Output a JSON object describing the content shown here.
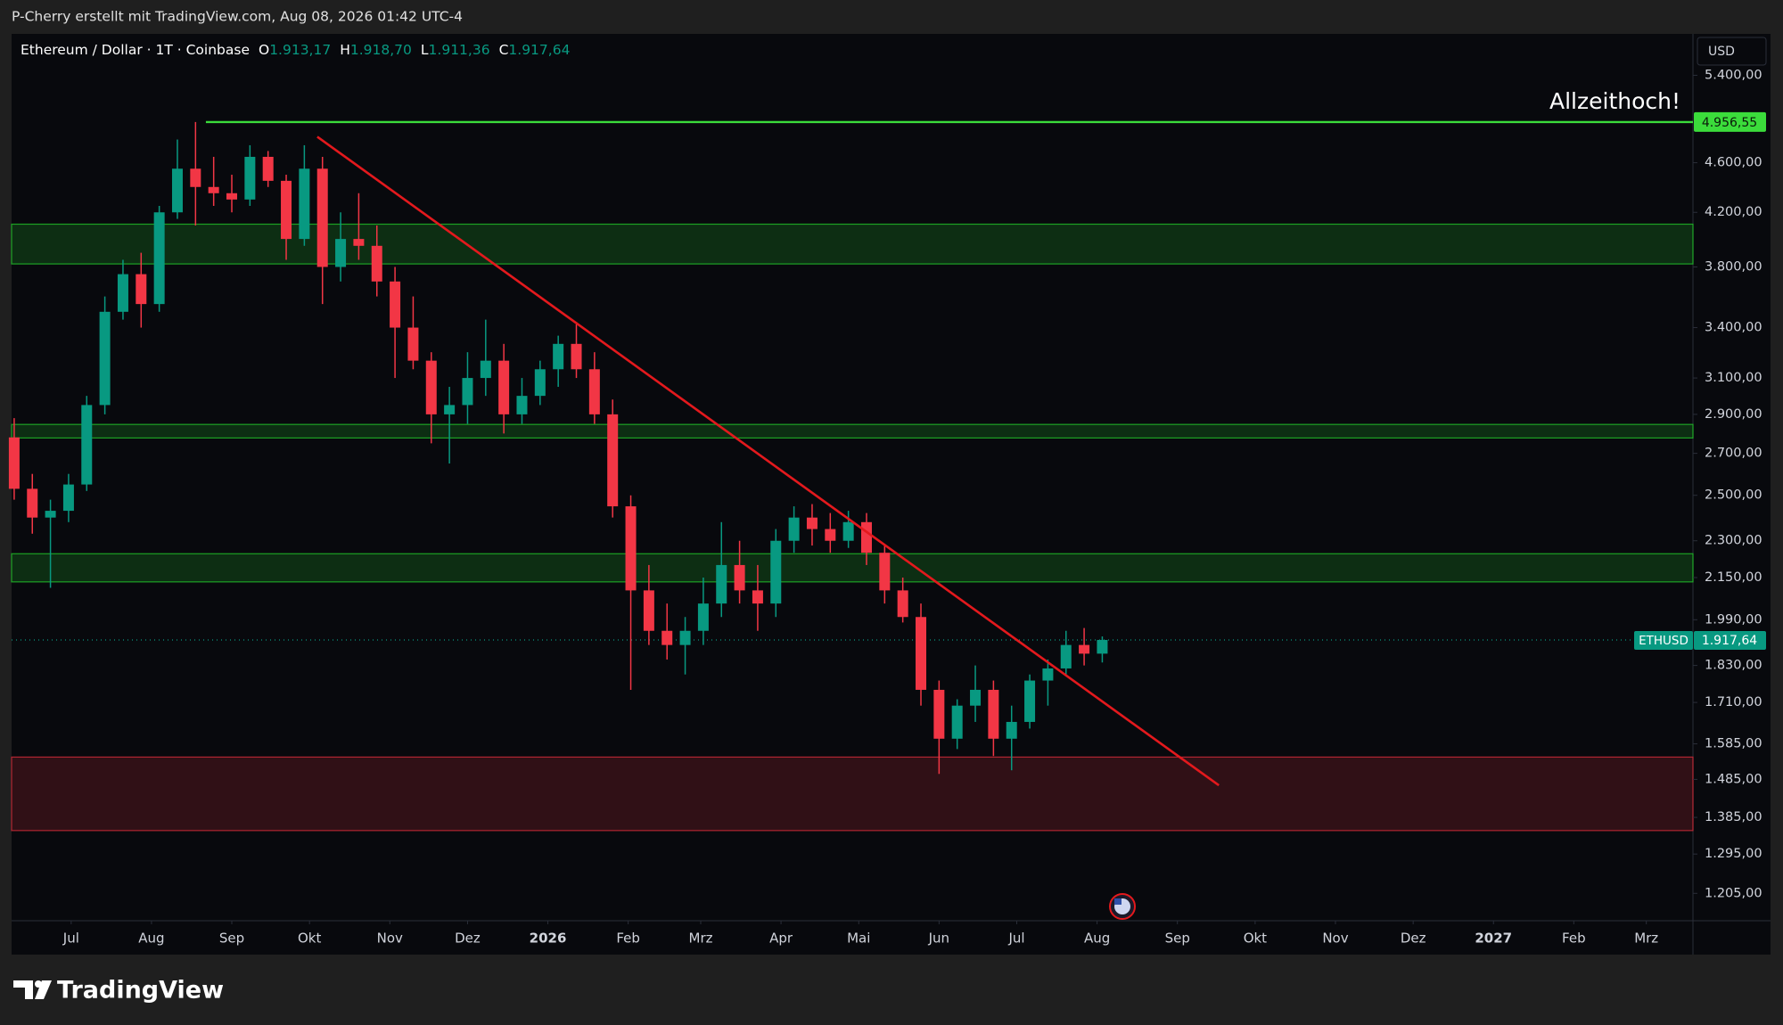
{
  "header": {
    "credit": "P-Cherry erstellt mit TradingView.com, Aug 08, 2026 01:42 UTC-4"
  },
  "legend": {
    "symbol": "Ethereum / Dollar · 1T · Coinbase",
    "ohlc": [
      {
        "label": "O",
        "value": "1.913,17"
      },
      {
        "label": "H",
        "value": "1.918,70"
      },
      {
        "label": "L",
        "value": "1.911,36"
      },
      {
        "label": "C",
        "value": "1.917,64"
      }
    ]
  },
  "chart_data": {
    "type": "candlestick",
    "currency": "USD",
    "log_scale": true,
    "up_color": "#089981",
    "down_color": "#f23645",
    "x": [
      "2025-06-09",
      "2025-06-16",
      "2025-06-23",
      "2025-06-30",
      "2025-07-07",
      "2025-07-14",
      "2025-07-21",
      "2025-07-28",
      "2025-08-04",
      "2025-08-11",
      "2025-08-18",
      "2025-08-25",
      "2025-09-01",
      "2025-09-08",
      "2025-09-15",
      "2025-09-22",
      "2025-09-29",
      "2025-10-06",
      "2025-10-13",
      "2025-10-20",
      "2025-10-27",
      "2025-11-03",
      "2025-11-10",
      "2025-11-17",
      "2025-11-24",
      "2025-12-01",
      "2025-12-08",
      "2025-12-15",
      "2025-12-22",
      "2025-12-29",
      "2026-01-05",
      "2026-01-12",
      "2026-01-19",
      "2026-01-26",
      "2026-02-02",
      "2026-02-09",
      "2026-02-16",
      "2026-02-23",
      "2026-03-02",
      "2026-03-09",
      "2026-03-16",
      "2026-03-23",
      "2026-03-30",
      "2026-04-06",
      "2026-04-13",
      "2026-04-20",
      "2026-04-27",
      "2026-05-04",
      "2026-05-11",
      "2026-05-18",
      "2026-05-25",
      "2026-06-01",
      "2026-06-08",
      "2026-06-15",
      "2026-06-22",
      "2026-06-29",
      "2026-07-06",
      "2026-07-13",
      "2026-07-20",
      "2026-07-27",
      "2026-08-03"
    ],
    "open": [
      2780,
      2530,
      2400,
      2430,
      2550,
      2950,
      3500,
      3750,
      3550,
      4200,
      4550,
      4400,
      4350,
      4300,
      4650,
      4450,
      4000,
      4550,
      3800,
      4000,
      3950,
      3700,
      3400,
      3200,
      2900,
      2950,
      3100,
      3200,
      2900,
      3000,
      3150,
      3300,
      3150,
      2900,
      2450,
      2100,
      1950,
      1900,
      1950,
      2050,
      2200,
      2100,
      2050,
      2300,
      2400,
      2350,
      2300,
      2380,
      2250,
      2100,
      2000,
      1750,
      1600,
      1700,
      1750,
      1600,
      1650,
      1780,
      1820,
      1900,
      1870
    ],
    "high": [
      2880,
      2600,
      2480,
      2600,
      3000,
      3600,
      3850,
      3900,
      4250,
      4800,
      4956.55,
      4650,
      4500,
      4750,
      4700,
      4500,
      4750,
      4650,
      4200,
      4350,
      4100,
      3800,
      3600,
      3250,
      3050,
      3250,
      3450,
      3300,
      3100,
      3200,
      3350,
      3420,
      3250,
      2980,
      2500,
      2200,
      2050,
      2000,
      2150,
      2380,
      2300,
      2200,
      2350,
      2450,
      2460,
      2420,
      2430,
      2420,
      2280,
      2150,
      2050,
      1780,
      1720,
      1830,
      1780,
      1700,
      1800,
      1850,
      1950,
      1960,
      1930
    ],
    "low": [
      2480,
      2330,
      2110,
      2380,
      2520,
      2900,
      3450,
      3400,
      3500,
      4150,
      4100,
      4250,
      4200,
      4250,
      4400,
      3850,
      3950,
      3550,
      3700,
      3850,
      3600,
      3100,
      3150,
      2750,
      2650,
      2850,
      3000,
      2800,
      2850,
      2950,
      3050,
      3100,
      2850,
      2400,
      1750,
      1900,
      1850,
      1800,
      1900,
      2000,
      2050,
      1950,
      2000,
      2250,
      2280,
      2250,
      2270,
      2200,
      2050,
      1980,
      1700,
      1500,
      1570,
      1650,
      1550,
      1510,
      1630,
      1700,
      1800,
      1830,
      1840
    ],
    "close": [
      2530,
      2400,
      2430,
      2550,
      2950,
      3500,
      3750,
      3550,
      4200,
      4550,
      4400,
      4350,
      4300,
      4650,
      4450,
      4000,
      4550,
      3800,
      4000,
      3950,
      3700,
      3400,
      3200,
      2900,
      2950,
      3100,
      3200,
      2900,
      3000,
      3150,
      3300,
      3150,
      2900,
      2450,
      2100,
      1950,
      1900,
      1950,
      2050,
      2200,
      2100,
      2050,
      2300,
      2400,
      2350,
      2300,
      2380,
      2250,
      2100,
      2000,
      1750,
      1600,
      1700,
      1750,
      1600,
      1650,
      1780,
      1820,
      1900,
      1870,
      1917.64
    ],
    "xlim": [
      "2025-06-08",
      "2027-03-19"
    ],
    "xticks": [
      {
        "value": "2025-07-01",
        "label": "Jul"
      },
      {
        "value": "2025-08-01",
        "label": "Aug"
      },
      {
        "value": "2025-09-01",
        "label": "Sep"
      },
      {
        "value": "2025-10-01",
        "label": "Okt"
      },
      {
        "value": "2025-11-01",
        "label": "Nov"
      },
      {
        "value": "2025-12-01",
        "label": "Dez"
      },
      {
        "value": "2026-01-01",
        "label": "2026"
      },
      {
        "value": "2026-02-01",
        "label": "Feb"
      },
      {
        "value": "2026-03-01",
        "label": "Mrz"
      },
      {
        "value": "2026-04-01",
        "label": "Apr"
      },
      {
        "value": "2026-05-01",
        "label": "Mai"
      },
      {
        "value": "2026-06-01",
        "label": "Jun"
      },
      {
        "value": "2026-07-01",
        "label": "Jul"
      },
      {
        "value": "2026-08-01",
        "label": "Aug"
      },
      {
        "value": "2026-09-01",
        "label": "Sep"
      },
      {
        "value": "2026-10-01",
        "label": "Okt"
      },
      {
        "value": "2026-11-01",
        "label": "Nov"
      },
      {
        "value": "2026-12-01",
        "label": "Dez"
      },
      {
        "value": "2027-01-01",
        "label": "2027"
      },
      {
        "value": "2027-02-01",
        "label": "Feb"
      },
      {
        "value": "2027-03-01",
        "label": "Mrz"
      }
    ],
    "ylim": [
      1146,
      5826
    ],
    "yticks": [
      {
        "value": 1205,
        "label": "1.205,00"
      },
      {
        "value": 1295,
        "label": "1.295,00"
      },
      {
        "value": 1385,
        "label": "1.385,00"
      },
      {
        "value": 1485,
        "label": "1.485,00"
      },
      {
        "value": 1585,
        "label": "1.585,00"
      },
      {
        "value": 1710,
        "label": "1.710,00"
      },
      {
        "value": 1830,
        "label": "1.830,00"
      },
      {
        "value": 1990,
        "label": "1.990,00"
      },
      {
        "value": 2150,
        "label": "2.150,00"
      },
      {
        "value": 2300,
        "label": "2.300,00"
      },
      {
        "value": 2500,
        "label": "2.500,00"
      },
      {
        "value": 2700,
        "label": "2.700,00"
      },
      {
        "value": 2900,
        "label": "2.900,00"
      },
      {
        "value": 3100,
        "label": "3.100,00"
      },
      {
        "value": 3400,
        "label": "3.400,00"
      },
      {
        "value": 3800,
        "label": "3.800,00"
      },
      {
        "value": 4200,
        "label": "4.200,00"
      },
      {
        "value": 4600,
        "label": "4.600,00"
      },
      {
        "value": 5400,
        "label": "5.400,00"
      }
    ],
    "zones": [
      {
        "top": 4110,
        "bottom": 3821,
        "color": "#22c32b"
      },
      {
        "top": 2847,
        "bottom": 2777,
        "color": "#22c32b"
      },
      {
        "top": 2246,
        "bottom": 2133,
        "color": "#22c32b"
      },
      {
        "top": 1547,
        "bottom": 1352,
        "color": "#d42c3a"
      }
    ],
    "trendline": {
      "x": [
        "2025-10-04",
        "2026-09-17"
      ],
      "y": [
        4824,
        1469
      ],
      "color": "#e3191d"
    },
    "ath_line": {
      "start": "2025-08-22",
      "value": 4956.55,
      "label": "4.956,55",
      "color": "#3bdc3b"
    },
    "annotation": "Allzeithoch!",
    "last_price": {
      "symbol": "ETHUSD",
      "value": 1917.64,
      "label": "1.917,64",
      "color": "#089981"
    }
  },
  "footer": {
    "brand": "TradingView"
  }
}
